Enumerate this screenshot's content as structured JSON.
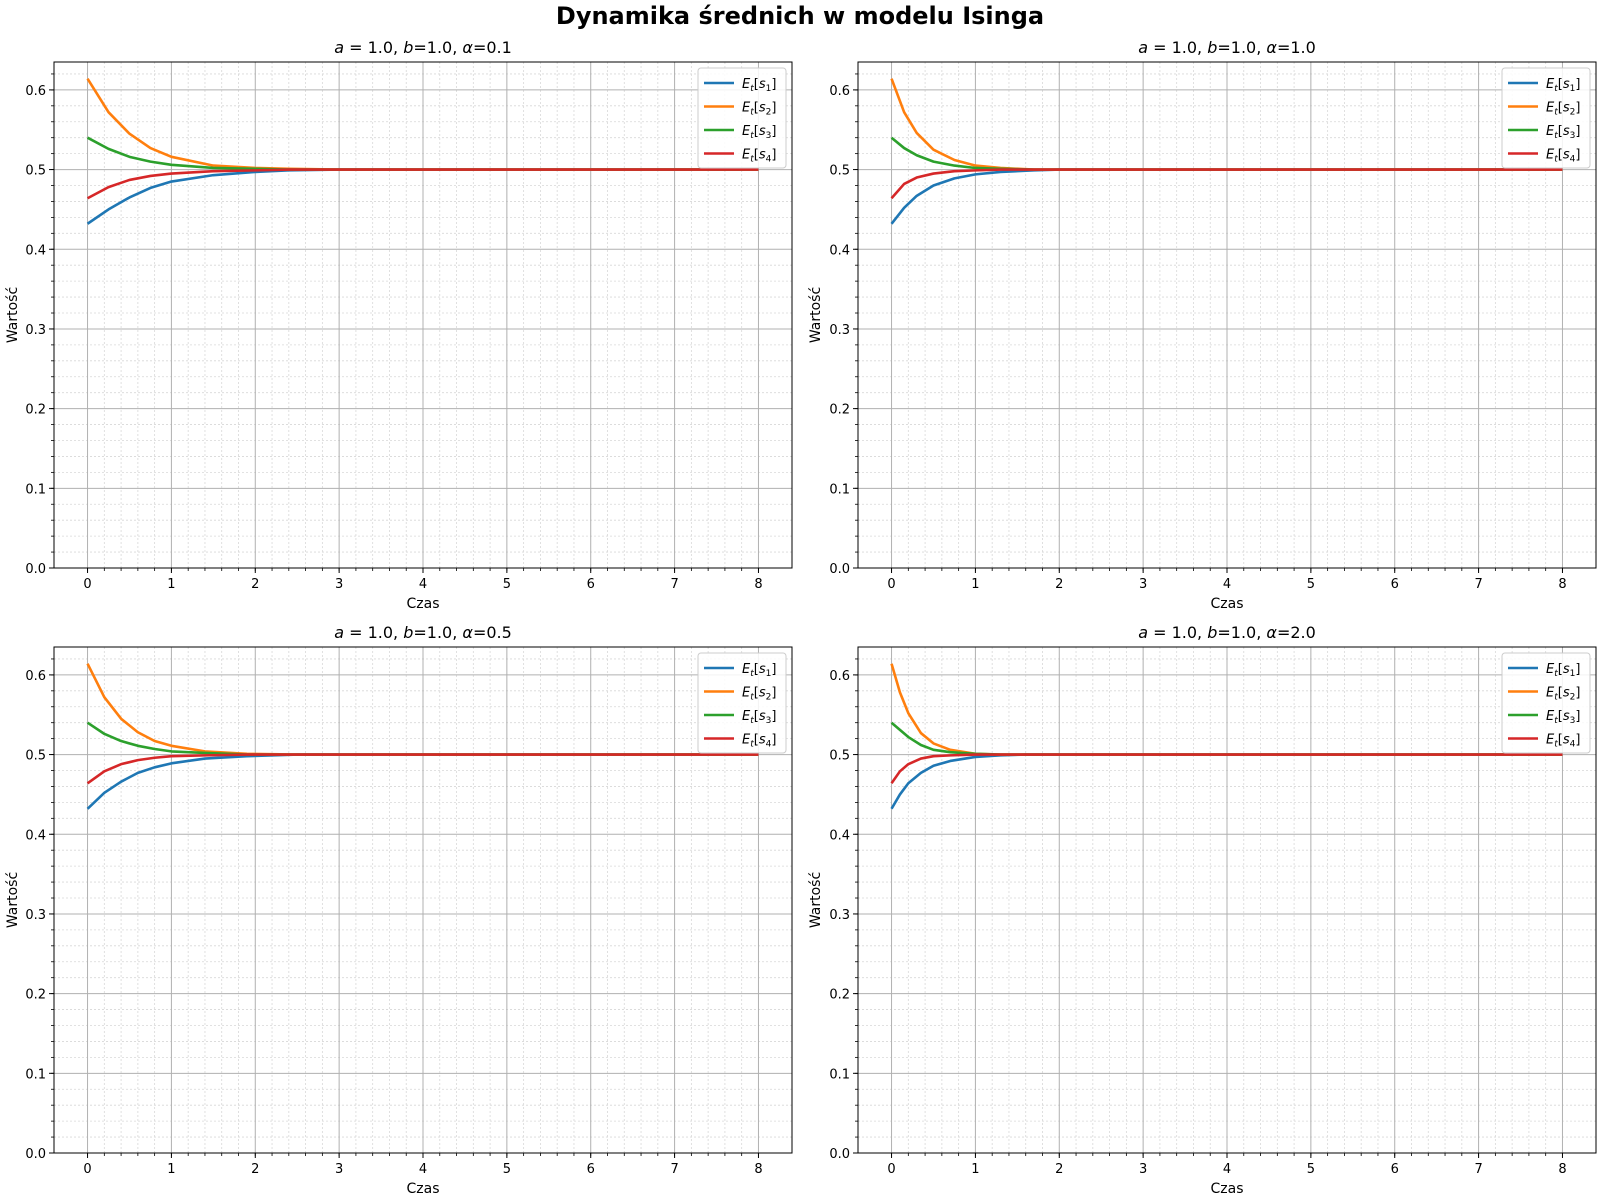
{
  "figure": {
    "title": "Dynamika średnich w modelu Isinga"
  },
  "colors": {
    "s1": "#1f77b4",
    "s2": "#ff7f0e",
    "s3": "#2ca02c",
    "s4": "#d62728",
    "grid_major": "#b0b0b0",
    "grid_minor": "#d8d8d8"
  },
  "chart_data": [
    {
      "type": "line",
      "title": "a = 1.0, b=1.0, α=0.1",
      "title_parts": {
        "a": "a",
        "a_val": " = 1.0, ",
        "b": "b",
        "b_val": "=1.0, ",
        "alpha": "α",
        "alpha_val": "=0.1"
      },
      "xlabel": "Czas",
      "ylabel": "Wartość",
      "xlim": [
        -0.4,
        8.4
      ],
      "ylim": [
        0.0,
        0.635
      ],
      "xticks": [
        "0",
        "1",
        "2",
        "3",
        "4",
        "5",
        "6",
        "7",
        "8"
      ],
      "yticks": [
        "0.0",
        "0.1",
        "0.2",
        "0.3",
        "0.4",
        "0.5",
        "0.6"
      ],
      "grid": true,
      "legend": "top-right",
      "series": [
        {
          "name": "E_t[s_1]",
          "x": [
            0,
            0.25,
            0.5,
            0.75,
            1,
            1.5,
            2,
            2.4,
            3,
            4,
            5,
            6,
            7,
            8
          ],
          "y": [
            0.432,
            0.45,
            0.465,
            0.477,
            0.485,
            0.493,
            0.497,
            0.499,
            0.5,
            0.5,
            0.5,
            0.5,
            0.5,
            0.5
          ]
        },
        {
          "name": "E_t[s_2]",
          "x": [
            0,
            0.25,
            0.5,
            0.75,
            1,
            1.5,
            2,
            2.4,
            3,
            4,
            5,
            6,
            7,
            8
          ],
          "y": [
            0.614,
            0.572,
            0.545,
            0.527,
            0.516,
            0.505,
            0.502,
            0.501,
            0.5,
            0.5,
            0.5,
            0.5,
            0.5,
            0.5
          ]
        },
        {
          "name": "E_t[s_3]",
          "x": [
            0,
            0.25,
            0.5,
            0.75,
            1,
            1.5,
            2,
            2.4,
            3,
            4,
            5,
            6,
            7,
            8
          ],
          "y": [
            0.54,
            0.526,
            0.516,
            0.51,
            0.506,
            0.502,
            0.501,
            0.5,
            0.5,
            0.5,
            0.5,
            0.5,
            0.5,
            0.5
          ]
        },
        {
          "name": "E_t[s_4]",
          "x": [
            0,
            0.25,
            0.5,
            0.75,
            1,
            1.5,
            2,
            2.4,
            3,
            4,
            5,
            6,
            7,
            8
          ],
          "y": [
            0.464,
            0.478,
            0.487,
            0.492,
            0.495,
            0.498,
            0.499,
            0.5,
            0.5,
            0.5,
            0.5,
            0.5,
            0.5,
            0.5
          ]
        }
      ]
    },
    {
      "type": "line",
      "title": "a = 1.0, b=1.0, α=1.0",
      "title_parts": {
        "a": "a",
        "a_val": " = 1.0, ",
        "b": "b",
        "b_val": "=1.0, ",
        "alpha": "α",
        "alpha_val": "=1.0"
      },
      "xlabel": "Czas",
      "ylabel": "Wartość",
      "xlim": [
        -0.4,
        8.4
      ],
      "ylim": [
        0.0,
        0.635
      ],
      "xticks": [
        "0",
        "1",
        "2",
        "3",
        "4",
        "5",
        "6",
        "7",
        "8"
      ],
      "yticks": [
        "0.0",
        "0.1",
        "0.2",
        "0.3",
        "0.4",
        "0.5",
        "0.6"
      ],
      "grid": true,
      "legend": "top-right",
      "series": [
        {
          "name": "E_t[s_1]",
          "x": [
            0,
            0.15,
            0.3,
            0.5,
            0.75,
            1,
            1.3,
            1.7,
            2,
            3,
            4,
            5,
            6,
            7,
            8
          ],
          "y": [
            0.432,
            0.452,
            0.467,
            0.48,
            0.489,
            0.494,
            0.497,
            0.499,
            0.5,
            0.5,
            0.5,
            0.5,
            0.5,
            0.5,
            0.5
          ]
        },
        {
          "name": "E_t[s_2]",
          "x": [
            0,
            0.15,
            0.3,
            0.5,
            0.75,
            1,
            1.3,
            1.7,
            2,
            3,
            4,
            5,
            6,
            7,
            8
          ],
          "y": [
            0.614,
            0.572,
            0.546,
            0.525,
            0.512,
            0.505,
            0.502,
            0.5,
            0.5,
            0.5,
            0.5,
            0.5,
            0.5,
            0.5,
            0.5
          ]
        },
        {
          "name": "E_t[s_3]",
          "x": [
            0,
            0.15,
            0.3,
            0.5,
            0.75,
            1,
            1.3,
            1.7,
            2,
            3,
            4,
            5,
            6,
            7,
            8
          ],
          "y": [
            0.54,
            0.527,
            0.518,
            0.51,
            0.505,
            0.502,
            0.501,
            0.5,
            0.5,
            0.5,
            0.5,
            0.5,
            0.5,
            0.5,
            0.5
          ]
        },
        {
          "name": "E_t[s_4]",
          "x": [
            0,
            0.15,
            0.3,
            0.5,
            0.75,
            1,
            1.3,
            1.7,
            2,
            3,
            4,
            5,
            6,
            7,
            8
          ],
          "y": [
            0.464,
            0.482,
            0.49,
            0.495,
            0.498,
            0.499,
            0.5,
            0.5,
            0.5,
            0.5,
            0.5,
            0.5,
            0.5,
            0.5,
            0.5
          ]
        }
      ]
    },
    {
      "type": "line",
      "title": "a = 1.0, b=1.0, α=0.5",
      "title_parts": {
        "a": "a",
        "a_val": " = 1.0, ",
        "b": "b",
        "b_val": "=1.0, ",
        "alpha": "α",
        "alpha_val": "=0.5"
      },
      "xlabel": "Czas",
      "ylabel": "Wartość",
      "xlim": [
        -0.4,
        8.4
      ],
      "ylim": [
        0.0,
        0.635
      ],
      "xticks": [
        "0",
        "1",
        "2",
        "3",
        "4",
        "5",
        "6",
        "7",
        "8"
      ],
      "yticks": [
        "0.0",
        "0.1",
        "0.2",
        "0.3",
        "0.4",
        "0.5",
        "0.6"
      ],
      "grid": true,
      "legend": "top-right",
      "series": [
        {
          "name": "E_t[s_1]",
          "x": [
            0,
            0.2,
            0.4,
            0.6,
            0.8,
            1,
            1.4,
            1.9,
            2.5,
            3,
            4,
            5,
            6,
            7,
            8
          ],
          "y": [
            0.432,
            0.452,
            0.466,
            0.477,
            0.484,
            0.489,
            0.495,
            0.498,
            0.5,
            0.5,
            0.5,
            0.5,
            0.5,
            0.5,
            0.5
          ]
        },
        {
          "name": "E_t[s_2]",
          "x": [
            0,
            0.2,
            0.4,
            0.6,
            0.8,
            1,
            1.4,
            1.9,
            2.5,
            3,
            4,
            5,
            6,
            7,
            8
          ],
          "y": [
            0.614,
            0.572,
            0.545,
            0.528,
            0.517,
            0.511,
            0.504,
            0.501,
            0.5,
            0.5,
            0.5,
            0.5,
            0.5,
            0.5,
            0.5
          ]
        },
        {
          "name": "E_t[s_3]",
          "x": [
            0,
            0.2,
            0.4,
            0.6,
            0.8,
            1,
            1.4,
            1.9,
            2.5,
            3,
            4,
            5,
            6,
            7,
            8
          ],
          "y": [
            0.54,
            0.526,
            0.517,
            0.511,
            0.507,
            0.504,
            0.502,
            0.5,
            0.5,
            0.5,
            0.5,
            0.5,
            0.5,
            0.5,
            0.5
          ]
        },
        {
          "name": "E_t[s_4]",
          "x": [
            0,
            0.2,
            0.4,
            0.6,
            0.8,
            1,
            1.4,
            1.9,
            2.5,
            3,
            4,
            5,
            6,
            7,
            8
          ],
          "y": [
            0.464,
            0.479,
            0.488,
            0.493,
            0.496,
            0.498,
            0.499,
            0.5,
            0.5,
            0.5,
            0.5,
            0.5,
            0.5,
            0.5,
            0.5
          ]
        }
      ]
    },
    {
      "type": "line",
      "title": "a = 1.0, b=1.0, α=2.0",
      "title_parts": {
        "a": "a",
        "a_val": " = 1.0, ",
        "b": "b",
        "b_val": "=1.0, ",
        "alpha": "α",
        "alpha_val": "=2.0"
      },
      "xlabel": "Czas",
      "ylabel": "Wartość",
      "xlim": [
        -0.4,
        8.4
      ],
      "ylim": [
        0.0,
        0.635
      ],
      "xticks": [
        "0",
        "1",
        "2",
        "3",
        "4",
        "5",
        "6",
        "7",
        "8"
      ],
      "yticks": [
        "0.0",
        "0.1",
        "0.2",
        "0.3",
        "0.4",
        "0.5",
        "0.6"
      ],
      "grid": true,
      "legend": "top-right",
      "series": [
        {
          "name": "E_t[s_1]",
          "x": [
            0,
            0.1,
            0.2,
            0.35,
            0.5,
            0.7,
            1,
            1.3,
            1.6,
            2,
            3,
            4,
            5,
            6,
            7,
            8
          ],
          "y": [
            0.432,
            0.45,
            0.464,
            0.477,
            0.486,
            0.492,
            0.497,
            0.499,
            0.5,
            0.5,
            0.5,
            0.5,
            0.5,
            0.5,
            0.5,
            0.5
          ]
        },
        {
          "name": "E_t[s_2]",
          "x": [
            0,
            0.1,
            0.2,
            0.35,
            0.5,
            0.7,
            1,
            1.3,
            1.6,
            2,
            3,
            4,
            5,
            6,
            7,
            8
          ],
          "y": [
            0.614,
            0.578,
            0.552,
            0.527,
            0.514,
            0.506,
            0.501,
            0.5,
            0.5,
            0.5,
            0.5,
            0.5,
            0.5,
            0.5,
            0.5,
            0.5
          ]
        },
        {
          "name": "E_t[s_3]",
          "x": [
            0,
            0.1,
            0.2,
            0.35,
            0.5,
            0.7,
            1,
            1.3,
            1.6,
            2,
            3,
            4,
            5,
            6,
            7,
            8
          ],
          "y": [
            0.54,
            0.531,
            0.522,
            0.512,
            0.506,
            0.503,
            0.501,
            0.5,
            0.5,
            0.5,
            0.5,
            0.5,
            0.5,
            0.5,
            0.5,
            0.5
          ]
        },
        {
          "name": "E_t[s_4]",
          "x": [
            0,
            0.1,
            0.2,
            0.35,
            0.5,
            0.7,
            1,
            1.3,
            1.6,
            2,
            3,
            4,
            5,
            6,
            7,
            8
          ],
          "y": [
            0.464,
            0.479,
            0.488,
            0.495,
            0.498,
            0.499,
            0.5,
            0.5,
            0.5,
            0.5,
            0.5,
            0.5,
            0.5,
            0.5,
            0.5,
            0.5
          ]
        }
      ]
    }
  ]
}
